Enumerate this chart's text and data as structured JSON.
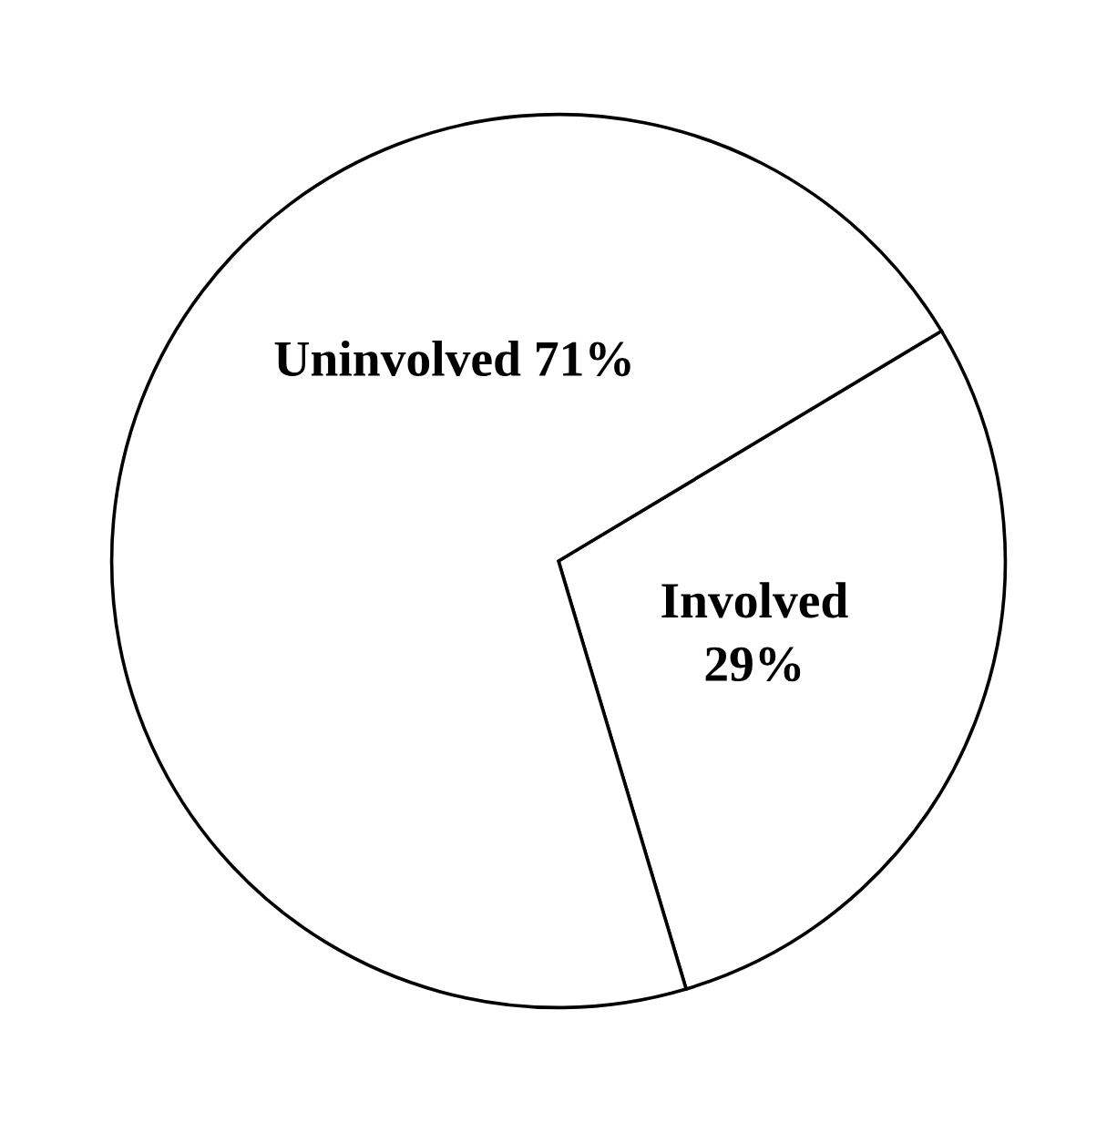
{
  "chart_data": {
    "type": "pie",
    "categories": [
      "Involved",
      "Uninvolved"
    ],
    "values": [
      29,
      71
    ],
    "value_labels": [
      "29%",
      "71%"
    ],
    "colors": [
      "#ffffff",
      "#ffffff"
    ],
    "legend": false
  }
}
